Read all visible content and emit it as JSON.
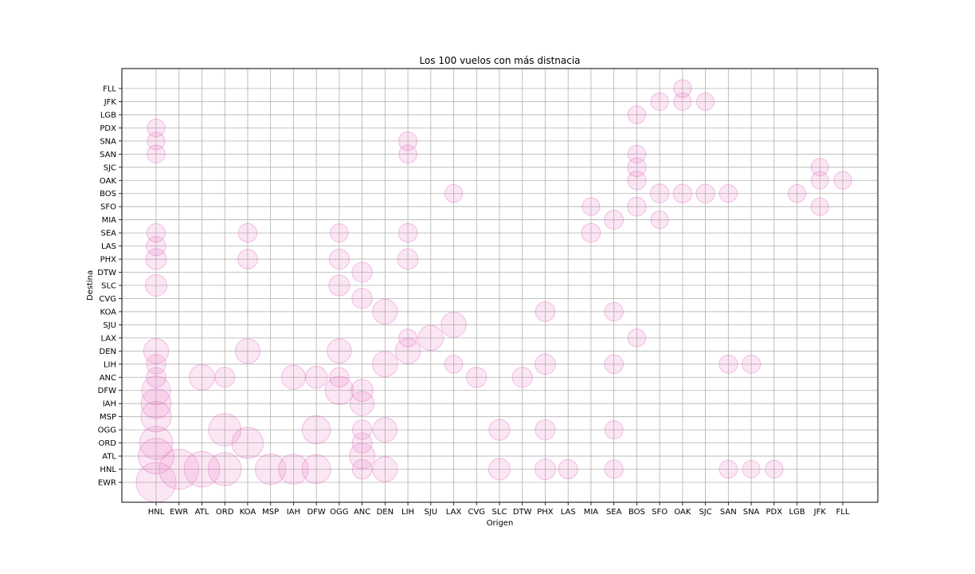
{
  "chart_data": {
    "type": "scatter",
    "title": "Los 100 vuelos con más distnacia",
    "xlabel": "Origen",
    "ylabel": "Destina",
    "grid": true,
    "marker_color": "#e377c2",
    "x_categories": [
      "HNL",
      "EWR",
      "ATL",
      "ORD",
      "KOA",
      "MSP",
      "IAH",
      "DFW",
      "OGG",
      "ANC",
      "DEN",
      "LIH",
      "SJU",
      "LAX",
      "CVG",
      "SLC",
      "DTW",
      "PHX",
      "LAS",
      "MIA",
      "SEA",
      "BOS",
      "SFO",
      "OAK",
      "SJC",
      "SAN",
      "SNA",
      "PDX",
      "LGB",
      "JFK",
      "FLL"
    ],
    "y_categories": [
      "EWR",
      "HNL",
      "ATL",
      "ORD",
      "OGG",
      "MSP",
      "IAH",
      "DFW",
      "ANC",
      "LIH",
      "DEN",
      "LAX",
      "SJU",
      "KOA",
      "CVG",
      "SLC",
      "DTW",
      "PHX",
      "LAS",
      "SEA",
      "MIA",
      "SFO",
      "BOS",
      "OAK",
      "SJC",
      "SAN",
      "SNA",
      "PDX",
      "LGB",
      "JFK",
      "FLL"
    ],
    "points": [
      {
        "x": "HNL",
        "y": "EWR",
        "size": 4962
      },
      {
        "x": "HNL",
        "y": "ATL",
        "size": 4502
      },
      {
        "x": "HNL",
        "y": "ORD",
        "size": 4243
      },
      {
        "x": "HNL",
        "y": "MSP",
        "size": 3972
      },
      {
        "x": "HNL",
        "y": "IAH",
        "size": 3904
      },
      {
        "x": "HNL",
        "y": "DFW",
        "size": 3784
      },
      {
        "x": "HNL",
        "y": "ANC",
        "size": 2783
      },
      {
        "x": "HNL",
        "y": "LIH",
        "size": 2783
      },
      {
        "x": "HNL",
        "y": "DEN",
        "size": 3365
      },
      {
        "x": "HNL",
        "y": "SLC",
        "size": 2991
      },
      {
        "x": "HNL",
        "y": "PHX",
        "size": 2917
      },
      {
        "x": "HNL",
        "y": "LAS",
        "size": 2762
      },
      {
        "x": "HNL",
        "y": "SEA",
        "size": 2677
      },
      {
        "x": "HNL",
        "y": "SAN",
        "size": 2613
      },
      {
        "x": "HNL",
        "y": "SNA",
        "size": 2576
      },
      {
        "x": "HNL",
        "y": "PDX",
        "size": 2603
      },
      {
        "x": "EWR",
        "y": "HNL",
        "size": 4962
      },
      {
        "x": "ATL",
        "y": "HNL",
        "size": 4502
      },
      {
        "x": "ATL",
        "y": "ANC",
        "size": 3417
      },
      {
        "x": "ORD",
        "y": "HNL",
        "size": 4243
      },
      {
        "x": "ORD",
        "y": "OGG",
        "size": 4184
      },
      {
        "x": "ORD",
        "y": "ANC",
        "size": 2846
      },
      {
        "x": "KOA",
        "y": "ORD",
        "size": 4051
      },
      {
        "x": "KOA",
        "y": "DEN",
        "size": 3358
      },
      {
        "x": "KOA",
        "y": "PHX",
        "size": 2797
      },
      {
        "x": "KOA",
        "y": "SEA",
        "size": 2688
      },
      {
        "x": "MSP",
        "y": "HNL",
        "size": 3972
      },
      {
        "x": "IAH",
        "y": "HNL",
        "size": 3904
      },
      {
        "x": "IAH",
        "y": "ANC",
        "size": 3266
      },
      {
        "x": "DFW",
        "y": "HNL",
        "size": 3784
      },
      {
        "x": "DFW",
        "y": "OGG",
        "size": 3711
      },
      {
        "x": "DFW",
        "y": "ANC",
        "size": 3043
      },
      {
        "x": "OGG",
        "y": "DFW",
        "size": 3711
      },
      {
        "x": "OGG",
        "y": "DEN",
        "size": 3305
      },
      {
        "x": "OGG",
        "y": "ANC",
        "size": 2780
      },
      {
        "x": "OGG",
        "y": "SLC",
        "size": 2930
      },
      {
        "x": "OGG",
        "y": "PHX",
        "size": 2845
      },
      {
        "x": "OGG",
        "y": "SEA",
        "size": 2640
      },
      {
        "x": "ANC",
        "y": "HNL",
        "size": 2783
      },
      {
        "x": "ANC",
        "y": "ATL",
        "size": 3417
      },
      {
        "x": "ANC",
        "y": "ORD",
        "size": 2846
      },
      {
        "x": "ANC",
        "y": "OGG",
        "size": 2780
      },
      {
        "x": "ANC",
        "y": "IAH",
        "size": 3266
      },
      {
        "x": "ANC",
        "y": "DFW",
        "size": 3043
      },
      {
        "x": "ANC",
        "y": "CVG",
        "size": 2865
      },
      {
        "x": "ANC",
        "y": "DTW",
        "size": 2838
      },
      {
        "x": "DEN",
        "y": "HNL",
        "size": 3365
      },
      {
        "x": "DEN",
        "y": "OGG",
        "size": 3305
      },
      {
        "x": "DEN",
        "y": "LIH",
        "size": 3410
      },
      {
        "x": "DEN",
        "y": "KOA",
        "size": 3358
      },
      {
        "x": "LIH",
        "y": "DEN",
        "size": 3410
      },
      {
        "x": "LIH",
        "y": "LAX",
        "size": 2615
      },
      {
        "x": "LIH",
        "y": "PHX",
        "size": 2888
      },
      {
        "x": "LIH",
        "y": "SEA",
        "size": 2701
      },
      {
        "x": "LIH",
        "y": "SAN",
        "size": 2640
      },
      {
        "x": "LIH",
        "y": "SNA",
        "size": 2646
      },
      {
        "x": "SJU",
        "y": "LAX",
        "size": 3386
      },
      {
        "x": "LAX",
        "y": "SJU",
        "size": 3386
      },
      {
        "x": "LAX",
        "y": "LIH",
        "size": 2615
      },
      {
        "x": "LAX",
        "y": "BOS",
        "size": 2611
      },
      {
        "x": "CVG",
        "y": "ANC",
        "size": 2865
      },
      {
        "x": "SLC",
        "y": "HNL",
        "size": 2991
      },
      {
        "x": "SLC",
        "y": "OGG",
        "size": 2930
      },
      {
        "x": "DTW",
        "y": "ANC",
        "size": 2838
      },
      {
        "x": "PHX",
        "y": "HNL",
        "size": 2917
      },
      {
        "x": "PHX",
        "y": "OGG",
        "size": 2845
      },
      {
        "x": "PHX",
        "y": "LIH",
        "size": 2888
      },
      {
        "x": "PHX",
        "y": "KOA",
        "size": 2797
      },
      {
        "x": "LAS",
        "y": "HNL",
        "size": 2762
      },
      {
        "x": "MIA",
        "y": "SEA",
        "size": 2724
      },
      {
        "x": "MIA",
        "y": "SFO",
        "size": 2585
      },
      {
        "x": "SEA",
        "y": "HNL",
        "size": 2677
      },
      {
        "x": "SEA",
        "y": "OGG",
        "size": 2640
      },
      {
        "x": "SEA",
        "y": "LIH",
        "size": 2701
      },
      {
        "x": "SEA",
        "y": "KOA",
        "size": 2688
      },
      {
        "x": "SEA",
        "y": "MIA",
        "size": 2724
      },
      {
        "x": "BOS",
        "y": "LAX",
        "size": 2611
      },
      {
        "x": "BOS",
        "y": "SFO",
        "size": 2704
      },
      {
        "x": "BOS",
        "y": "OAK",
        "size": 2694
      },
      {
        "x": "BOS",
        "y": "SJC",
        "size": 2689
      },
      {
        "x": "BOS",
        "y": "SAN",
        "size": 2588
      },
      {
        "x": "BOS",
        "y": "LGB",
        "size": 2603
      },
      {
        "x": "SFO",
        "y": "BOS",
        "size": 2704
      },
      {
        "x": "SFO",
        "y": "MIA",
        "size": 2585
      },
      {
        "x": "SFO",
        "y": "JFK",
        "size": 2586
      },
      {
        "x": "OAK",
        "y": "BOS",
        "size": 2694
      },
      {
        "x": "OAK",
        "y": "JFK",
        "size": 2576
      },
      {
        "x": "OAK",
        "y": "FLL",
        "size": 2583
      },
      {
        "x": "SJC",
        "y": "BOS",
        "size": 2689
      },
      {
        "x": "SJC",
        "y": "JFK",
        "size": 2569
      },
      {
        "x": "SAN",
        "y": "HNL",
        "size": 2613
      },
      {
        "x": "SAN",
        "y": "LIH",
        "size": 2640
      },
      {
        "x": "SAN",
        "y": "BOS",
        "size": 2588
      },
      {
        "x": "SNA",
        "y": "HNL",
        "size": 2576
      },
      {
        "x": "SNA",
        "y": "LIH",
        "size": 2646
      },
      {
        "x": "PDX",
        "y": "HNL",
        "size": 2603
      },
      {
        "x": "LGB",
        "y": "BOS",
        "size": 2603
      },
      {
        "x": "JFK",
        "y": "SFO",
        "size": 2586
      },
      {
        "x": "JFK",
        "y": "OAK",
        "size": 2576
      },
      {
        "x": "JFK",
        "y": "SJC",
        "size": 2569
      },
      {
        "x": "FLL",
        "y": "OAK",
        "size": 2583
      }
    ]
  }
}
